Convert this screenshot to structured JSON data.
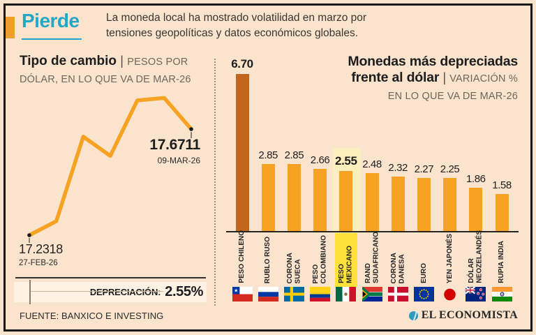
{
  "header": {
    "kicker": "Pierde",
    "description_line1": "La moneda local ha mostrado volatilidad en marzo por",
    "description_line2": "tensiones geopolíticas y datos económicos globales."
  },
  "left_chart": {
    "title": "Tipo de cambio",
    "separator": "|",
    "subtitle_line1": "PESOS POR",
    "subtitle_line2": "DÓLAR, EN LO QUE VA DE MAR-26",
    "start_value": "17.2318",
    "start_date": "27-FEB-26",
    "end_value": "17.6711",
    "end_date": "09-MAR-26",
    "depreciation_label": "DEPRECIACIÓN:",
    "depreciation_value": "2.55%"
  },
  "right_chart": {
    "title_line1": "Monedas más depreciadas",
    "title_line2": "frente al dólar",
    "separator": "|",
    "subtitle_line1": "VARIACIÓN %",
    "subtitle_line2": "EN LO QUE VA DE MAR-26"
  },
  "footer": {
    "source": "FUENTE: BANXICO E INVESTING",
    "brand": "EL ECONOMISTA"
  },
  "colors": {
    "background": "#fbe4ce",
    "accent_teal": "#23a7c8",
    "bar_orange": "#f7a223",
    "bar_dark": "#c2661d",
    "kicker_square": "#ef9d2c",
    "highlight_pale": "#fcefbe",
    "highlight_bright": "#fee139"
  },
  "chart_data": [
    {
      "type": "line",
      "title": "Tipo de cambio",
      "ylabel": "Pesos por dólar",
      "x": [
        "27-FEB-26",
        "",
        "",
        "",
        "",
        "",
        "09-MAR-26"
      ],
      "values": [
        17.2318,
        17.29,
        17.64,
        17.56,
        17.79,
        17.8,
        17.6711
      ],
      "ylim": [
        17.2,
        17.85
      ],
      "grid": false,
      "annotations": [
        "17.2318 (27-FEB-26)",
        "17.6711 (09-MAR-26)",
        "DEPRECIACIÓN: 2.55%"
      ]
    },
    {
      "type": "bar",
      "title": "Monedas más depreciadas frente al dólar",
      "ylabel": "Variación % en lo que va de MAR-26",
      "categories": [
        "PESO CHILENO",
        "RUBLO RUSO",
        "CORONA SUECA",
        "PESO COLOMBIANO",
        "PESO MEXICANO",
        "RAND SUDAFRICANO",
        "CORONA DANESA",
        "EURO",
        "YEN JAPONÉS",
        "DÓLAR NEOZELANDÉS",
        "RUPIA INDIA"
      ],
      "category_lines": [
        "PESO CHILENO",
        "RUBLO RUSO",
        "CORONA\nSUECA",
        "PESO\nCOLOMBIANO",
        "PESO\nMEXICANO",
        "RAND\nSUDAFRICANO",
        "CORONA\nDANESA",
        "EURO",
        "YEN JAPONÉS",
        "DÓLAR\nNEOZELANDÉS",
        "RUPIA INDIA"
      ],
      "values": [
        6.7,
        2.85,
        2.85,
        2.66,
        2.55,
        2.48,
        2.32,
        2.27,
        2.25,
        1.86,
        1.58
      ],
      "value_labels": [
        "6.70",
        "2.85",
        "2.85",
        "2.66",
        "2.55",
        "2.48",
        "2.32",
        "2.27",
        "2.25",
        "1.86",
        "1.58"
      ],
      "highlight_index": 4,
      "dark_index": 0,
      "flags": [
        "flag-chile",
        "flag-russia",
        "flag-sweden",
        "flag-colombia",
        "flag-mexico",
        "flag-south-africa",
        "flag-denmark",
        "flag-eu",
        "flag-japan",
        "flag-new-zealand",
        "flag-india"
      ],
      "ylim": [
        0,
        7
      ]
    }
  ]
}
